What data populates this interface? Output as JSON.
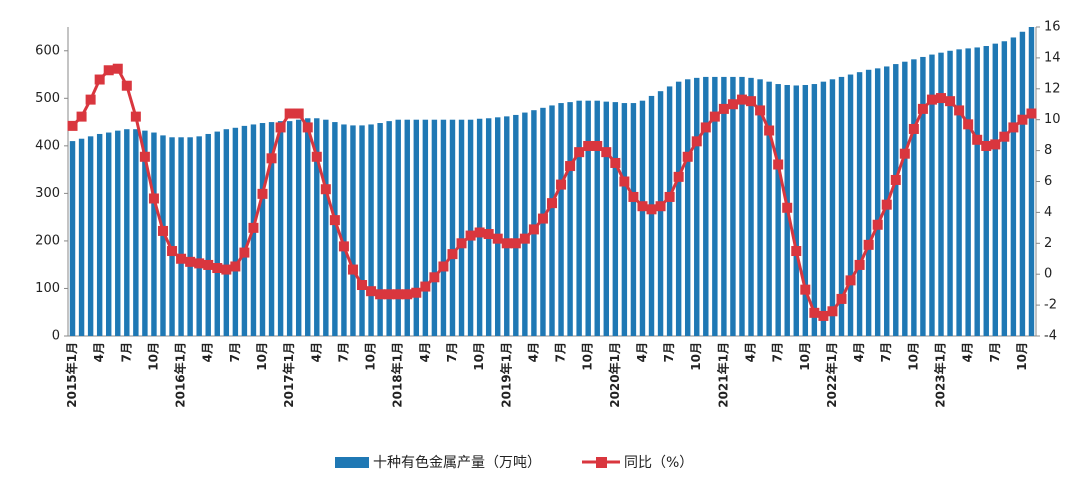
{
  "chart_data": {
    "type": "bar-line",
    "categories": [
      "2015年1月",
      null,
      null,
      "4月",
      null,
      null,
      "7月",
      null,
      null,
      "10月",
      null,
      null,
      "2016年1月",
      null,
      null,
      "4月",
      null,
      null,
      "7月",
      null,
      null,
      "10月",
      null,
      null,
      "2017年1月",
      null,
      null,
      "4月",
      null,
      null,
      "7月",
      null,
      null,
      "10月",
      null,
      null,
      "2018年1月",
      null,
      null,
      "4月",
      null,
      null,
      "7月",
      null,
      null,
      "10月",
      null,
      null,
      "2019年1月",
      null,
      null,
      "4月",
      null,
      null,
      "7月",
      null,
      null,
      "10月",
      null,
      null,
      "2020年1月",
      null,
      null,
      "4月",
      null,
      null,
      "7月",
      null,
      null,
      "10月",
      null,
      null,
      "2021年1月",
      null,
      null,
      "4月",
      null,
      null,
      "7月",
      null,
      null,
      "10月",
      null,
      null,
      "2022年1月",
      null,
      null,
      "4月",
      null,
      null,
      "7月",
      null,
      null,
      "10月",
      null,
      null,
      "2023年1月",
      null,
      null,
      "4月",
      null,
      null,
      "7月",
      null,
      null,
      "10月",
      null
    ],
    "series": [
      {
        "name": "十种有色金属产量（万吨）",
        "type": "bar",
        "color": "#1f78b4",
        "values": [
          410,
          415,
          420,
          425,
          428,
          432,
          435,
          435,
          432,
          428,
          422,
          418,
          418,
          418,
          420,
          425,
          430,
          435,
          438,
          442,
          445,
          448,
          450,
          452,
          452,
          455,
          458,
          458,
          455,
          450,
          445,
          443,
          443,
          445,
          448,
          452,
          455,
          455,
          455,
          455,
          455,
          455,
          455,
          455,
          455,
          457,
          458,
          460,
          462,
          465,
          470,
          475,
          480,
          485,
          490,
          492,
          495,
          495,
          495,
          493,
          492,
          490,
          490,
          495,
          505,
          515,
          525,
          535,
          540,
          543,
          545,
          545,
          545,
          545,
          545,
          543,
          540,
          535,
          530,
          528,
          527,
          528,
          530,
          535,
          540,
          545,
          550,
          555,
          560,
          563,
          567,
          572,
          577,
          582,
          587,
          592,
          596,
          600,
          603,
          605,
          607,
          610,
          615,
          620,
          628,
          640,
          650
        ]
      },
      {
        "name": "同比（%）",
        "type": "line",
        "axis": "y2",
        "color": "#d9363e",
        "values": [
          9.6,
          10.2,
          11.3,
          12.6,
          13.2,
          13.3,
          12.2,
          10.2,
          7.6,
          4.9,
          2.8,
          1.5,
          1.0,
          0.8,
          0.7,
          0.6,
          0.4,
          0.3,
          0.5,
          1.4,
          3.0,
          5.2,
          7.5,
          9.5,
          10.4,
          10.4,
          9.5,
          7.6,
          5.5,
          3.5,
          1.8,
          0.3,
          -0.7,
          -1.1,
          -1.3,
          -1.3,
          -1.3,
          -1.3,
          -1.2,
          -0.8,
          -0.2,
          0.5,
          1.3,
          2.0,
          2.5,
          2.7,
          2.6,
          2.3,
          2.0,
          2.0,
          2.3,
          2.9,
          3.6,
          4.6,
          5.8,
          7.0,
          7.9,
          8.3,
          8.3,
          7.9,
          7.2,
          6.0,
          5.0,
          4.4,
          4.2,
          4.4,
          5.0,
          6.3,
          7.6,
          8.6,
          9.5,
          10.2,
          10.7,
          11.0,
          11.3,
          11.2,
          10.6,
          9.3,
          7.1,
          4.3,
          1.5,
          -1.0,
          -2.5,
          -2.7,
          -2.4,
          -1.6,
          -0.4,
          0.6,
          1.9,
          3.2,
          4.5,
          6.1,
          7.8,
          9.4,
          10.7,
          11.3,
          11.4,
          11.2,
          10.6,
          9.7,
          8.7,
          8.3,
          8.4,
          8.9,
          9.5,
          10.0,
          10.4
        ]
      }
    ],
    "ylim": [
      0,
      650
    ],
    "yticks": [
      0,
      100,
      200,
      300,
      400,
      500,
      600
    ],
    "y2lim": [
      -4,
      16
    ],
    "y2ticks": [
      -4,
      -2,
      0,
      2,
      4,
      6,
      8,
      10,
      12,
      14,
      16
    ]
  }
}
